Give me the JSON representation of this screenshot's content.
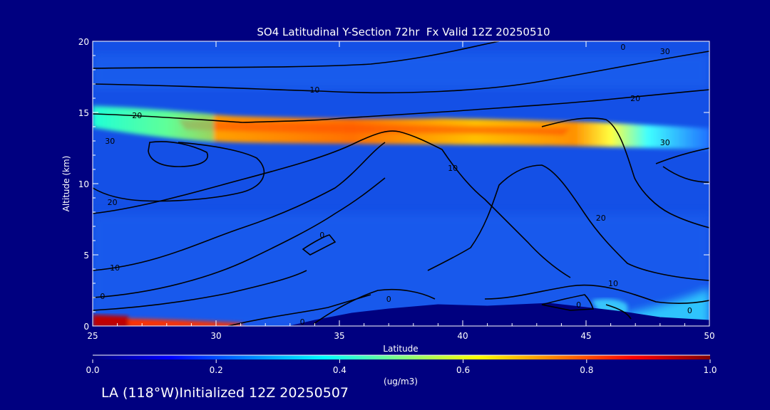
{
  "footer": "LA (118°W)Initialized 12Z 20250507",
  "chart_data": {
    "type": "heatmap",
    "title": "SO4 Latitudinal Y-Section 72hr  Fx Valid 12Z 20250510",
    "xlabel": "Latitude",
    "ylabel": "Altitude (km)",
    "xlim": [
      25,
      50
    ],
    "ylim": [
      0,
      20
    ],
    "xticks": [
      25,
      30,
      35,
      40,
      45,
      50
    ],
    "yticks": [
      0,
      5,
      10,
      15,
      20
    ],
    "colorbar": {
      "label": "(ug/m3)",
      "ticks": [
        0.0,
        0.2,
        0.4,
        0.6,
        0.8,
        1.0
      ],
      "tick_labels": [
        "0.0",
        "0.2",
        "0.4",
        "0.6",
        "0.8",
        "1.0"
      ],
      "colors": [
        "#00007f",
        "#0000ff",
        "#0080ff",
        "#00ffff",
        "#80ff80",
        "#ffff00",
        "#ff8000",
        "#ff0000",
        "#7f0000"
      ]
    },
    "background_color": "#000080",
    "field_base_color": "#1450e6",
    "terrain": [
      [
        25,
        0
      ],
      [
        33,
        0
      ],
      [
        34,
        0.4
      ],
      [
        35.5,
        0.9
      ],
      [
        37,
        1.2
      ],
      [
        39,
        1.5
      ],
      [
        41,
        1.4
      ],
      [
        43.5,
        1.6
      ],
      [
        45,
        1.3
      ],
      [
        46.5,
        1.0
      ],
      [
        48,
        0.6
      ],
      [
        50,
        0.4
      ]
    ],
    "features": [
      {
        "name": "tropopause-layer",
        "lat": [
          25,
          50
        ],
        "alt_center": 13.8,
        "alt_width": 1.8,
        "peak": 0.7,
        "peak_lat": 33
      },
      {
        "name": "surface-layer",
        "lat": [
          25,
          28
        ],
        "alt_center": 0.3,
        "alt_width": 0.7,
        "peak": 0.85
      }
    ],
    "contour_labels": [
      {
        "text": "0",
        "lat": 46.5,
        "alt": 19.6
      },
      {
        "text": "10",
        "lat": 34.0,
        "alt": 16.6
      },
      {
        "text": "30",
        "lat": 48.2,
        "alt": 19.3
      },
      {
        "text": "20",
        "lat": 47.0,
        "alt": 16.0
      },
      {
        "text": "20",
        "lat": 26.8,
        "alt": 14.8
      },
      {
        "text": "30",
        "lat": 25.7,
        "alt": 13.0
      },
      {
        "text": "30",
        "lat": 48.2,
        "alt": 12.9
      },
      {
        "text": "20",
        "lat": 25.8,
        "alt": 8.7
      },
      {
        "text": "10",
        "lat": 25.9,
        "alt": 4.1
      },
      {
        "text": "0",
        "lat": 25.4,
        "alt": 2.1
      },
      {
        "text": "0",
        "lat": 34.3,
        "alt": 6.4
      },
      {
        "text": "0",
        "lat": 33.5,
        "alt": 0.3
      },
      {
        "text": "10",
        "lat": 39.6,
        "alt": 11.1
      },
      {
        "text": "20",
        "lat": 45.6,
        "alt": 7.6
      },
      {
        "text": "10",
        "lat": 46.1,
        "alt": 3.0
      },
      {
        "text": "0",
        "lat": 37.0,
        "alt": 1.9
      },
      {
        "text": "0",
        "lat": 44.7,
        "alt": 1.5
      },
      {
        "text": "0",
        "lat": 49.2,
        "alt": 1.1
      }
    ]
  }
}
